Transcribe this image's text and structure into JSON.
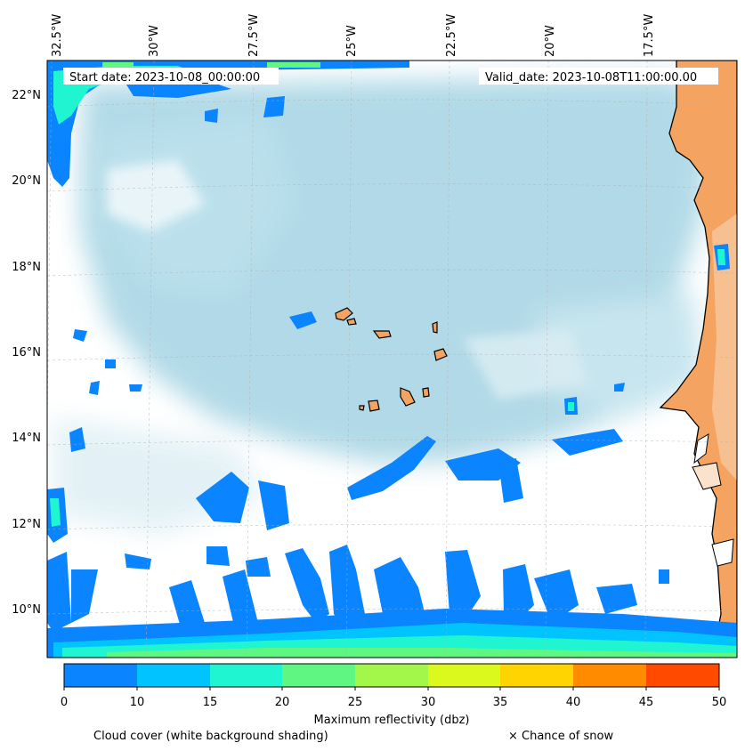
{
  "header": {
    "start_date": "Start date: 2023-10-08_00:00:00",
    "valid_date": "Valid_date: 2023-10-08T11:00:00.00"
  },
  "axes": {
    "lon_labels": [
      "32.5°W",
      "30°W",
      "27.5°W",
      "25°W",
      "22.5°W",
      "20°W",
      "17.5°W"
    ],
    "lat_labels": [
      "22°N",
      "20°N",
      "18°N",
      "16°N",
      "14°N",
      "12°N",
      "10°N"
    ]
  },
  "colorbar": {
    "ticks": [
      "0",
      "10",
      "15",
      "20",
      "25",
      "30",
      "35",
      "40",
      "45",
      "50"
    ],
    "colors": [
      "#0a84ff",
      "#00c3ff",
      "#1ff5d0",
      "#5ff782",
      "#a3f74a",
      "#dcf91d",
      "#ffd400",
      "#ff8c00",
      "#ff4a00"
    ],
    "label": "Maximum reflectivity (dbz)"
  },
  "legend": {
    "cloud_cover": "Cloud cover (white background shading)",
    "snow": "× Chance of snow"
  },
  "colors": {
    "cloud": "#add8e6",
    "land": "#f4a460",
    "refl_low": "#0a84ff",
    "refl_mid": "#1ff5d0",
    "refl_high": "#5ff782"
  }
}
